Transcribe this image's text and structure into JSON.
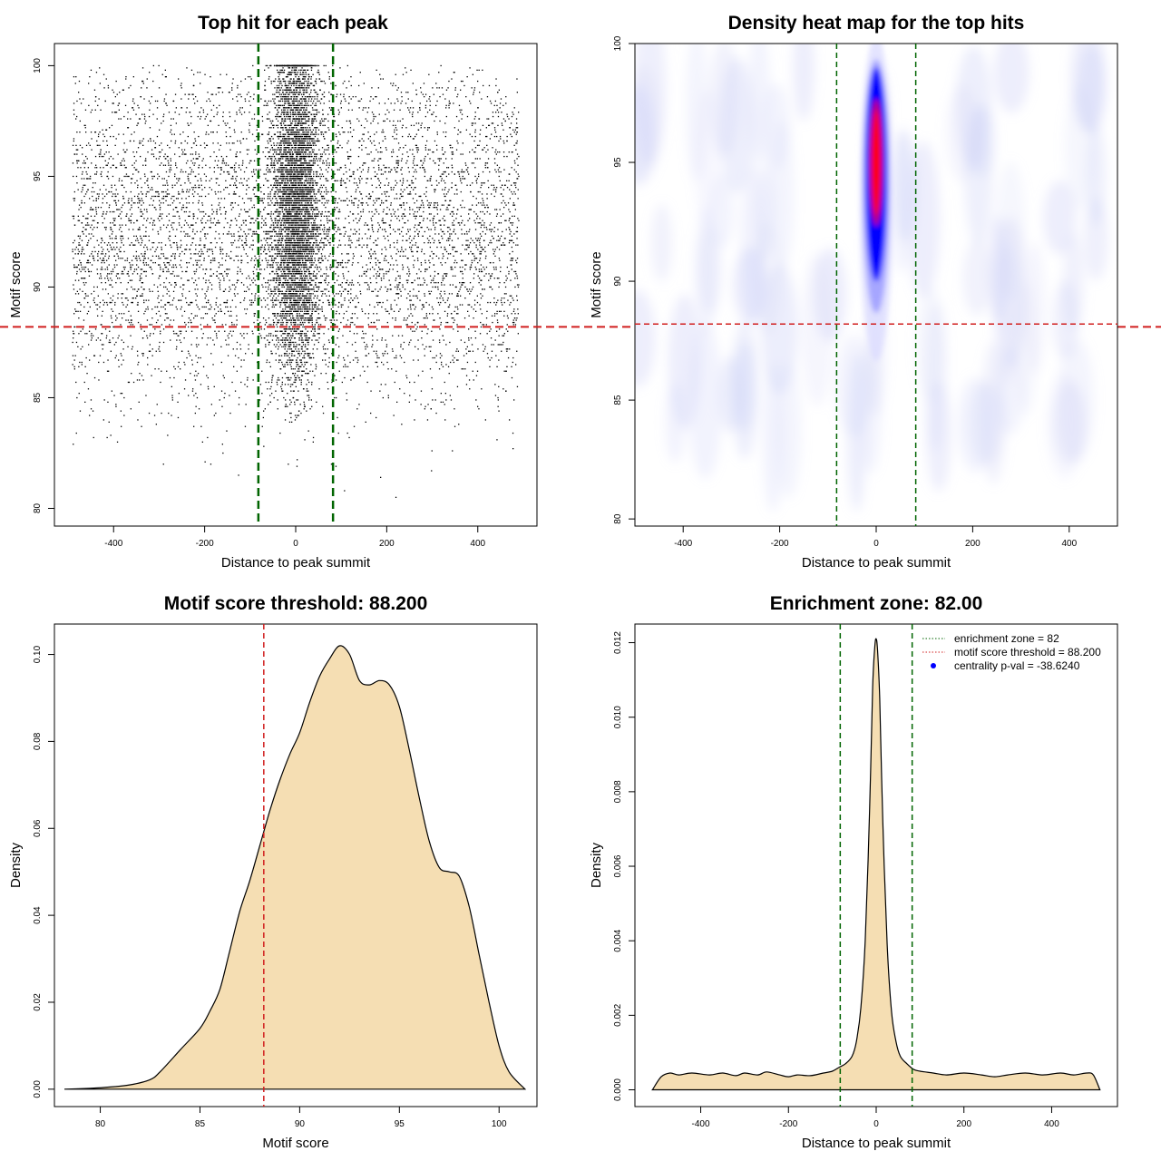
{
  "colors": {
    "enrichment_line": "#006400",
    "threshold_line": "#d11f1f",
    "density_fill": "#f5deb3",
    "heat_low": "#ffffff",
    "heat_mid": "#0000ff",
    "heat_high": "#ff0000",
    "points": "#000000"
  },
  "chart_data": [
    {
      "type": "scatter",
      "title": "Top hit for each peak",
      "xlabel": "Distance to peak summit",
      "ylabel": "Motif score",
      "xlim": [
        -530,
        530
      ],
      "ylim": [
        79.2,
        101
      ],
      "xticks": [
        -400,
        -200,
        0,
        200,
        400
      ],
      "yticks": [
        80,
        85,
        90,
        95,
        100
      ],
      "grid": false,
      "vlines": [
        -82,
        82
      ],
      "hline": 88.2,
      "description_of_points": {
        "background_x_range": [
          -490,
          490
        ],
        "background_y_range": [
          80,
          100
        ],
        "central_cluster_x_center": 0,
        "central_cluster_y_range": [
          84,
          100
        ]
      }
    },
    {
      "type": "heatmap",
      "title": "Density heat map for the top hits",
      "xlabel": "Distance to peak summit",
      "ylabel": "Motif score",
      "xlim": [
        -500,
        500
      ],
      "ylim": [
        79.7,
        100
      ],
      "xticks": [
        -400,
        -200,
        0,
        200,
        400
      ],
      "yticks": [
        80,
        85,
        90,
        95,
        100
      ],
      "vlines": [
        -82,
        82
      ],
      "hline": 88.2,
      "peak_x": 0,
      "peak_y_range": [
        90,
        98
      ]
    },
    {
      "type": "area",
      "title": "Motif score threshold: 88.200",
      "xlabel": "Motif score",
      "ylabel": "Density",
      "xlim": [
        77.7,
        101.9
      ],
      "ylim": [
        -0.004,
        0.107
      ],
      "xticks": [
        80,
        85,
        90,
        95,
        100
      ],
      "yticks": [
        0.0,
        0.02,
        0.04,
        0.06,
        0.08,
        0.1
      ],
      "ytick_labels": [
        "0.00",
        "0.02",
        "0.04",
        "0.06",
        "0.08",
        "0.10"
      ],
      "vline": 88.2,
      "x": [
        78.2,
        79.5,
        80.5,
        81.5,
        82.5,
        83.0,
        84.0,
        85.0,
        85.5,
        86.0,
        86.5,
        87.0,
        87.5,
        88.0,
        88.5,
        89.0,
        89.5,
        90.0,
        90.5,
        91.0,
        91.5,
        92.0,
        92.5,
        93.0,
        93.5,
        94.0,
        94.5,
        95.0,
        95.5,
        96.0,
        96.5,
        97.0,
        97.5,
        98.0,
        98.5,
        99.0,
        99.5,
        100.0,
        100.5,
        101.3
      ],
      "y": [
        0.0,
        0.0002,
        0.0005,
        0.001,
        0.0022,
        0.004,
        0.009,
        0.014,
        0.018,
        0.023,
        0.032,
        0.041,
        0.048,
        0.056,
        0.064,
        0.071,
        0.077,
        0.082,
        0.089,
        0.095,
        0.099,
        0.102,
        0.1,
        0.094,
        0.093,
        0.094,
        0.093,
        0.088,
        0.078,
        0.067,
        0.057,
        0.051,
        0.05,
        0.049,
        0.042,
        0.031,
        0.02,
        0.01,
        0.004,
        0.0
      ]
    },
    {
      "type": "area",
      "title": "Enrichment zone: 82.00",
      "xlabel": "Distance to peak summit",
      "ylabel": "Density",
      "xlim": [
        -550,
        550
      ],
      "ylim": [
        -0.00045,
        0.0125
      ],
      "xticks": [
        -400,
        -200,
        0,
        200,
        400
      ],
      "yticks": [
        0.0,
        0.002,
        0.004,
        0.006,
        0.008,
        0.01,
        0.012
      ],
      "ytick_labels": [
        "0.000",
        "0.002",
        "0.004",
        "0.006",
        "0.008",
        "0.010",
        "0.012"
      ],
      "vlines": [
        -82,
        82
      ],
      "legend_position": "top-right",
      "legend": [
        {
          "label": "enrichment zone = 82",
          "style": "dotted-line",
          "color": "#006400"
        },
        {
          "label": "motif score threshold = 88.200",
          "style": "dotted-line",
          "color": "#d11f1f"
        },
        {
          "label": "centrality p-val = -38.6240",
          "style": "point",
          "color": "#0000ff"
        }
      ],
      "x": [
        -510,
        -490,
        -470,
        -450,
        -420,
        -380,
        -350,
        -320,
        -300,
        -270,
        -250,
        -220,
        -200,
        -180,
        -150,
        -120,
        -100,
        -85,
        -70,
        -55,
        -45,
        -35,
        -25,
        -15,
        -8,
        -3,
        0,
        3,
        8,
        15,
        25,
        35,
        45,
        55,
        70,
        85,
        100,
        130,
        160,
        200,
        240,
        270,
        300,
        340,
        380,
        420,
        450,
        480,
        495,
        510
      ],
      "y": [
        0.0,
        0.00035,
        0.00045,
        0.0004,
        0.00045,
        0.0004,
        0.00045,
        0.00038,
        0.00045,
        0.0004,
        0.00048,
        0.0004,
        0.00035,
        0.0004,
        0.00038,
        0.00045,
        0.0005,
        0.0006,
        0.0007,
        0.0009,
        0.0013,
        0.0022,
        0.004,
        0.0075,
        0.0108,
        0.0119,
        0.0121,
        0.0118,
        0.0105,
        0.0072,
        0.0039,
        0.0021,
        0.0013,
        0.0009,
        0.0007,
        0.00055,
        0.0005,
        0.00045,
        0.0004,
        0.00045,
        0.0004,
        0.00035,
        0.0004,
        0.00045,
        0.0004,
        0.00045,
        0.0004,
        0.00045,
        0.0004,
        0.0
      ]
    }
  ]
}
